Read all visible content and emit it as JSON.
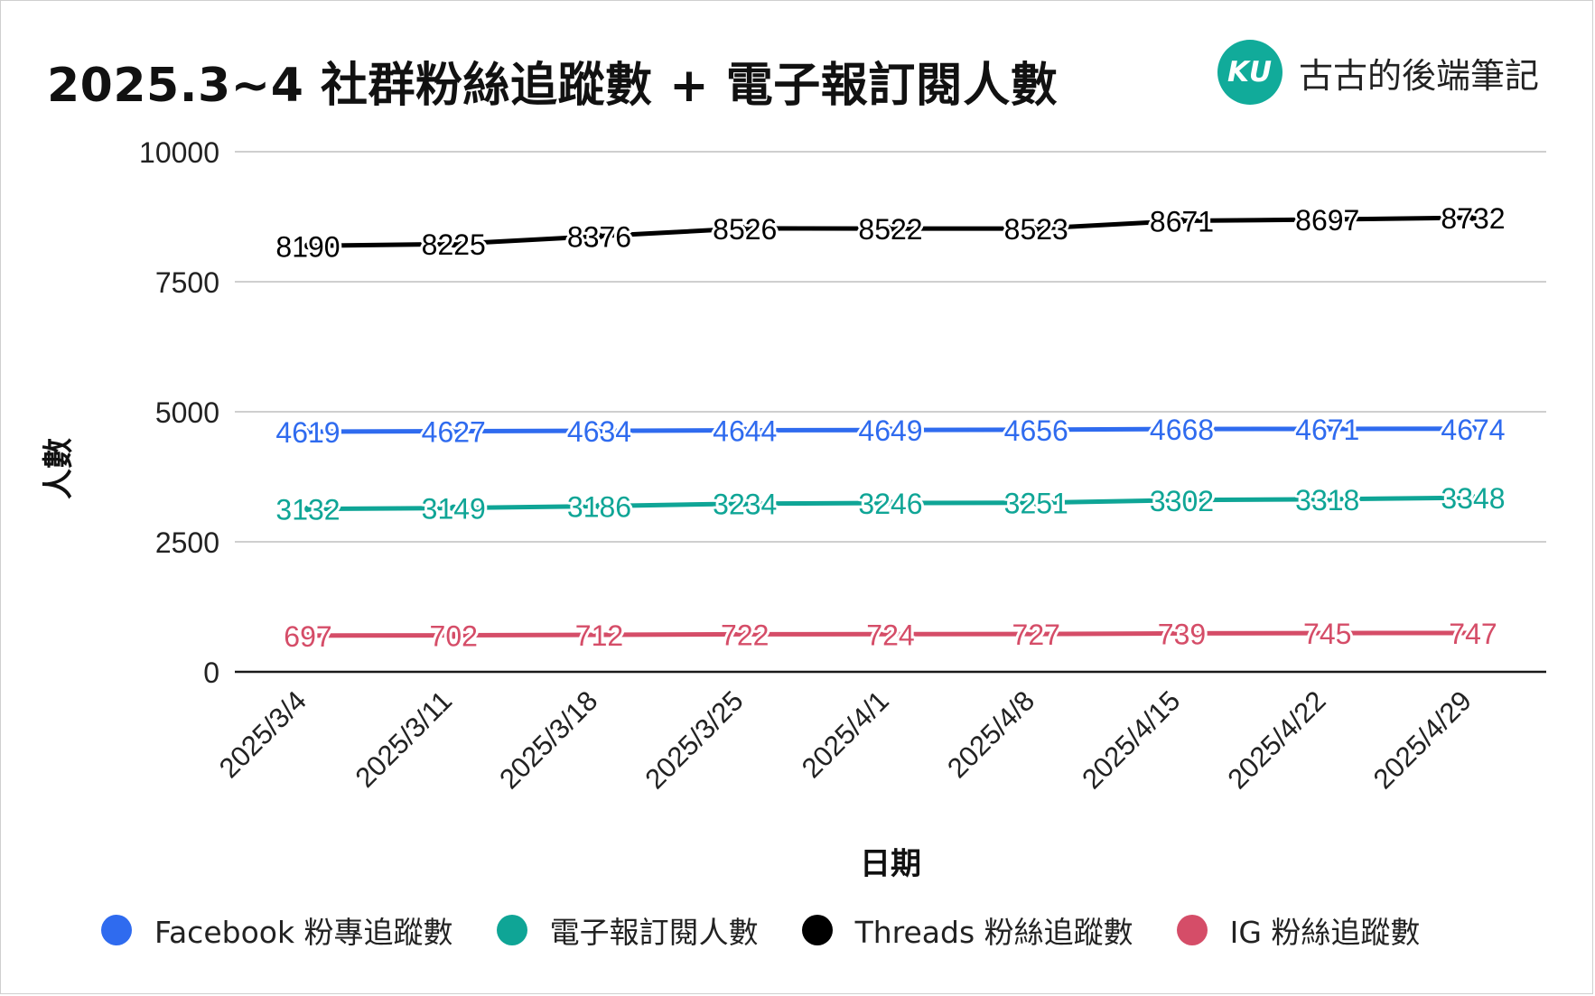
{
  "title": "2025.3~4 社群粉絲追蹤數 + 電子報訂閱人數",
  "brand": {
    "logo_text": "KU",
    "name": "古古的後端筆記",
    "logo_color": "#11ab9a"
  },
  "chart_data": {
    "type": "line",
    "title": "2025.3~4 社群粉絲追蹤數 + 電子報訂閱人數",
    "xlabel": "日期",
    "ylabel": "人數",
    "ylim": [
      0,
      10000
    ],
    "yticks": [
      "10000",
      "7500",
      "5000",
      "2500",
      "0"
    ],
    "grid": true,
    "legend_position": "bottom",
    "categories": [
      "2025/3/4",
      "2025/3/11",
      "2025/3/18",
      "2025/3/25",
      "2025/4/1",
      "2025/4/8",
      "2025/4/15",
      "2025/4/22",
      "2025/4/29"
    ],
    "series": [
      {
        "name": "Facebook 粉專追蹤數",
        "color": "#2f6bef",
        "values": [
          4619,
          4627,
          4634,
          4644,
          4649,
          4656,
          4668,
          4671,
          4674
        ]
      },
      {
        "name": "電子報訂閱人數",
        "color": "#0fa596",
        "values": [
          3132,
          3149,
          3186,
          3234,
          3246,
          3251,
          3302,
          3318,
          3348
        ]
      },
      {
        "name": "Threads 粉絲追蹤數",
        "color": "#000000",
        "values": [
          8190,
          8225,
          8376,
          8526,
          8522,
          8523,
          8671,
          8697,
          8732
        ]
      },
      {
        "name": "IG 粉絲追蹤數",
        "color": "#d54d68",
        "values": [
          697,
          702,
          712,
          722,
          724,
          727,
          739,
          745,
          747
        ]
      }
    ]
  }
}
